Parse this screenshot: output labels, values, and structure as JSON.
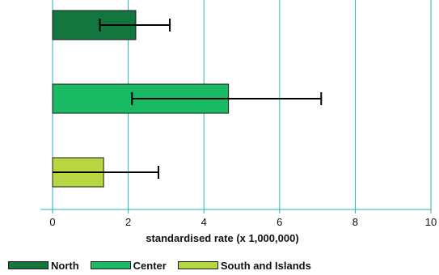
{
  "chart_data": {
    "type": "bar",
    "orientation": "horizontal",
    "categories": [
      "North",
      "Center",
      "South and Islands"
    ],
    "values": [
      2.2,
      4.65,
      1.35
    ],
    "error_low": [
      1.25,
      2.1,
      0.0
    ],
    "error_high": [
      3.1,
      7.1,
      2.8
    ],
    "colors": [
      "#14763f",
      "#1ab963",
      "#b7d742"
    ],
    "xlabel": "standardised rate (x 1,000,000)",
    "xlim": [
      0,
      10
    ],
    "xticks": [
      0,
      2,
      4,
      6,
      8,
      10
    ],
    "xtick_labels": [
      "0",
      "2",
      "4",
      "6",
      "8",
      "10"
    ],
    "grid": "vertical",
    "grid_color": "#27b3b0",
    "legend_position": "bottom",
    "legend": [
      {
        "label": "North",
        "color": "#14763f"
      },
      {
        "label": "Center",
        "color": "#1ab963"
      },
      {
        "label": "South and Islands",
        "color": "#b7d742"
      }
    ]
  }
}
